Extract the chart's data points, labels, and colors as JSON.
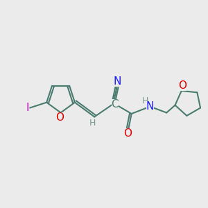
{
  "bg_color": "#ebebeb",
  "bond_color": "#4a7c6e",
  "bond_width": 1.5,
  "atom_colors": {
    "O": "#e00000",
    "N": "#1a1aff",
    "I": "#cc00cc",
    "H": "#7a9a90"
  },
  "fs_large": 11,
  "fs_small": 9,
  "figsize": [
    3.0,
    3.0
  ],
  "dpi": 100
}
